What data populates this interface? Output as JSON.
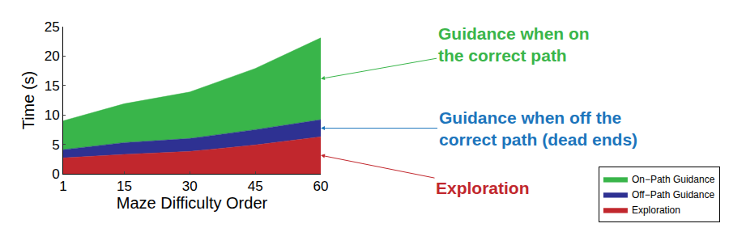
{
  "chart_data": {
    "type": "area",
    "stacked": true,
    "x": [
      1,
      15,
      30,
      45,
      60
    ],
    "xlim": [
      1,
      60
    ],
    "xticks": [
      1,
      15,
      30,
      45,
      60
    ],
    "ylim": [
      0,
      25
    ],
    "yticks": [
      0,
      5,
      10,
      15,
      20,
      25
    ],
    "x_label": "Maze Difficulty Order",
    "y_label": "Time (s)",
    "grid": false,
    "legend": "lower right",
    "series": [
      {
        "name": "Exploration",
        "color": "#c1272d",
        "values": [
          2.7,
          3.3,
          3.8,
          4.9,
          6.3
        ]
      },
      {
        "name": "Off−Path Guidance",
        "color": "#2e3192",
        "values": [
          1.4,
          2.0,
          2.2,
          2.6,
          2.9
        ]
      },
      {
        "name": "On−Path Guidance",
        "color": "#39b54a",
        "values": [
          4.9,
          6.6,
          7.9,
          10.4,
          13.9
        ]
      }
    ],
    "annotations": [
      {
        "text": "Guidance when on\nthe correct path",
        "series": "On−Path Guidance",
        "color": "#39b54a"
      },
      {
        "text": "Guidance when off the\ncorrect path (dead ends)",
        "series": "Off−Path Guidance",
        "color": "#1c75bc"
      },
      {
        "text": "Exploration",
        "series": "Exploration",
        "color": "#c1272d"
      }
    ]
  }
}
